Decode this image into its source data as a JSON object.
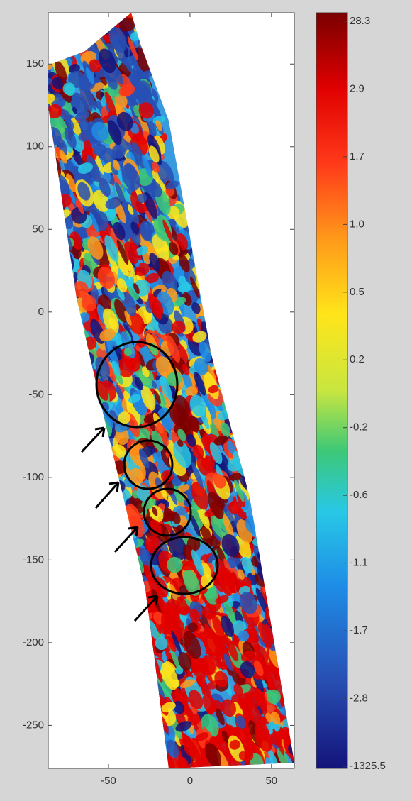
{
  "chart_data": {
    "type": "map",
    "xlim": [
      -87,
      64
    ],
    "xticks": [
      -50,
      0,
      50
    ],
    "ylim": [
      -276,
      181
    ],
    "yticks": [
      150,
      100,
      50,
      0,
      -50,
      -100,
      -150,
      -200,
      -250
    ],
    "colorbar_ticks": [
      28.3,
      2.9,
      1.7,
      {
        "value": 1,
        "label": "1.0"
      },
      0.5,
      0.2,
      -0.2,
      -0.6,
      -1.1,
      -1.7,
      -2.8,
      -1325.5
    ]
  }
}
